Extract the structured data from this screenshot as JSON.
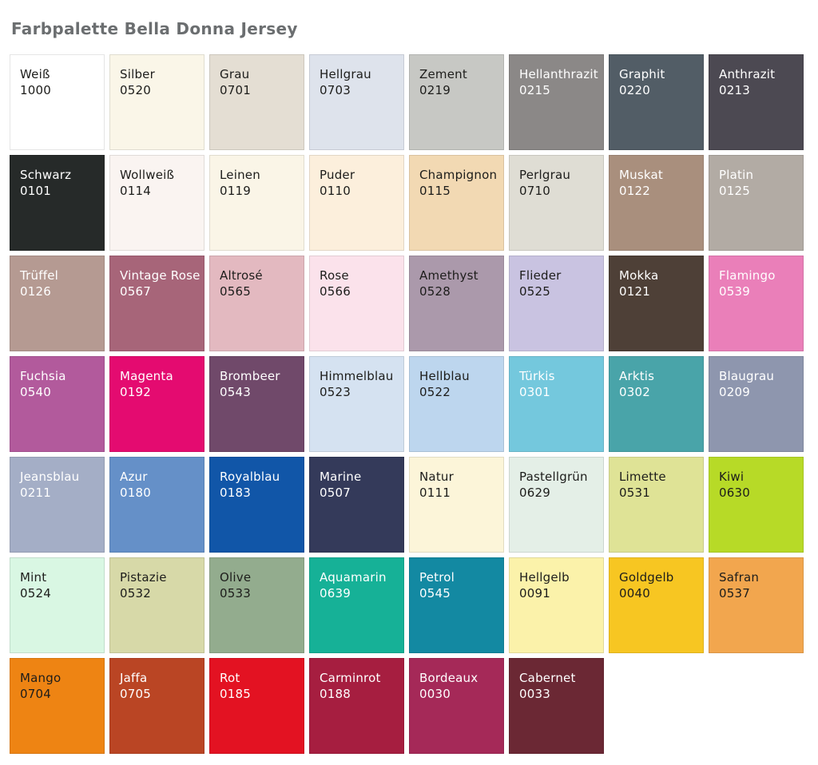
{
  "page": {
    "title": "Farbpalette Bella Donna Jersey"
  },
  "palette": {
    "columns": 8,
    "rows": 7,
    "swatch_count": 54,
    "dark_label_color": "#1d1d1b",
    "light_label_color": "#ffffff",
    "swatches": [
      {
        "name": "Weiß",
        "code": "1000",
        "bg": "#ffffff",
        "text": "#1d1d1b"
      },
      {
        "name": "Silber",
        "code": "0520",
        "bg": "#faf6e8",
        "text": "#1d1d1b"
      },
      {
        "name": "Grau",
        "code": "0701",
        "bg": "#e4ded3",
        "text": "#1d1d1b"
      },
      {
        "name": "Hellgrau",
        "code": "0703",
        "bg": "#dee3ec",
        "text": "#1d1d1b"
      },
      {
        "name": "Zement",
        "code": "0219",
        "bg": "#c7c8c4",
        "text": "#1d1d1b"
      },
      {
        "name": "Hellanthrazit",
        "code": "0215",
        "bg": "#8b8887",
        "text": "#ffffff"
      },
      {
        "name": "Graphit",
        "code": "0220",
        "bg": "#525d66",
        "text": "#ffffff"
      },
      {
        "name": "Anthrazit",
        "code": "0213",
        "bg": "#4c4952",
        "text": "#ffffff"
      },
      {
        "name": "Schwarz",
        "code": "0101",
        "bg": "#262a29",
        "text": "#ffffff"
      },
      {
        "name": "Wollweiß",
        "code": "0114",
        "bg": "#faf4f1",
        "text": "#1d1d1b"
      },
      {
        "name": "Leinen",
        "code": "0119",
        "bg": "#faf5e7",
        "text": "#1d1d1b"
      },
      {
        "name": "Puder",
        "code": "0110",
        "bg": "#fcefdc",
        "text": "#1d1d1b"
      },
      {
        "name": "Champignon",
        "code": "0115",
        "bg": "#f2d9b3",
        "text": "#1d1d1b"
      },
      {
        "name": "Perlgrau",
        "code": "0710",
        "bg": "#dfddd4",
        "text": "#1d1d1b"
      },
      {
        "name": "Muskat",
        "code": "0122",
        "bg": "#a98f7d",
        "text": "#ffffff"
      },
      {
        "name": "Platin",
        "code": "0125",
        "bg": "#b2aba4",
        "text": "#ffffff"
      },
      {
        "name": "Trüffel",
        "code": "0126",
        "bg": "#b59a92",
        "text": "#ffffff"
      },
      {
        "name": "Vintage Rose",
        "code": "0567",
        "bg": "#a76579",
        "text": "#ffffff"
      },
      {
        "name": "Altrosé",
        "code": "0565",
        "bg": "#e3b9c0",
        "text": "#1d1d1b"
      },
      {
        "name": "Rose",
        "code": "0566",
        "bg": "#fbe2eb",
        "text": "#1d1d1b"
      },
      {
        "name": "Amethyst",
        "code": "0528",
        "bg": "#ab99ab",
        "text": "#1d1d1b"
      },
      {
        "name": "Flieder",
        "code": "0525",
        "bg": "#c9c3e1",
        "text": "#1d1d1b"
      },
      {
        "name": "Mokka",
        "code": "0121",
        "bg": "#4e4037",
        "text": "#ffffff"
      },
      {
        "name": "Flamingo",
        "code": "0539",
        "bg": "#ea7fb9",
        "text": "#ffffff"
      },
      {
        "name": "Fuchsia",
        "code": "0540",
        "bg": "#b25a9c",
        "text": "#ffffff"
      },
      {
        "name": "Magenta",
        "code": "0192",
        "bg": "#e40b70",
        "text": "#ffffff"
      },
      {
        "name": "Brombeer",
        "code": "0543",
        "bg": "#70496a",
        "text": "#ffffff"
      },
      {
        "name": "Himmelblau",
        "code": "0523",
        "bg": "#d5e2f1",
        "text": "#1d1d1b"
      },
      {
        "name": "Hellblau",
        "code": "0522",
        "bg": "#bdd6ee",
        "text": "#1d1d1b"
      },
      {
        "name": "Türkis",
        "code": "0301",
        "bg": "#74c8dd",
        "text": "#ffffff"
      },
      {
        "name": "Arktis",
        "code": "0302",
        "bg": "#49a4a9",
        "text": "#ffffff"
      },
      {
        "name": "Blaugrau",
        "code": "0209",
        "bg": "#8e96ae",
        "text": "#ffffff"
      },
      {
        "name": "Jeansblau",
        "code": "0211",
        "bg": "#a4aec6",
        "text": "#ffffff"
      },
      {
        "name": "Azur",
        "code": "0180",
        "bg": "#6590c8",
        "text": "#ffffff"
      },
      {
        "name": "Royalblau",
        "code": "0183",
        "bg": "#1156a8",
        "text": "#ffffff"
      },
      {
        "name": "Marine",
        "code": "0507",
        "bg": "#343a5a",
        "text": "#ffffff"
      },
      {
        "name": "Natur",
        "code": "0111",
        "bg": "#fcf5d9",
        "text": "#1d1d1b"
      },
      {
        "name": "Pastellgrün",
        "code": "0629",
        "bg": "#e4efe7",
        "text": "#1d1d1b"
      },
      {
        "name": "Limette",
        "code": "0531",
        "bg": "#dfe396",
        "text": "#1d1d1b"
      },
      {
        "name": "Kiwi",
        "code": "0630",
        "bg": "#b7da27",
        "text": "#1d1d1b"
      },
      {
        "name": "Mint",
        "code": "0524",
        "bg": "#d9f7e3",
        "text": "#1d1d1b"
      },
      {
        "name": "Pistazie",
        "code": "0532",
        "bg": "#d7d9a8",
        "text": "#1d1d1b"
      },
      {
        "name": "Olive",
        "code": "0533",
        "bg": "#93ac8e",
        "text": "#1d1d1b"
      },
      {
        "name": "Aquamarin",
        "code": "0639",
        "bg": "#16b197",
        "text": "#ffffff"
      },
      {
        "name": "Petrol",
        "code": "0545",
        "bg": "#1389a2",
        "text": "#ffffff"
      },
      {
        "name": "Hellgelb",
        "code": "0091",
        "bg": "#fbf2aa",
        "text": "#1d1d1b"
      },
      {
        "name": "Goldgelb",
        "code": "0040",
        "bg": "#f7c622",
        "text": "#1d1d1b"
      },
      {
        "name": "Safran",
        "code": "0537",
        "bg": "#f2a64e",
        "text": "#1d1d1b"
      },
      {
        "name": "Mango",
        "code": "0704",
        "bg": "#ee8413",
        "text": "#1d1d1b"
      },
      {
        "name": "Jaffa",
        "code": "0705",
        "bg": "#ba4524",
        "text": "#ffffff"
      },
      {
        "name": "Rot",
        "code": "0185",
        "bg": "#e31222",
        "text": "#ffffff"
      },
      {
        "name": "Carminrot",
        "code": "0188",
        "bg": "#a61e40",
        "text": "#ffffff"
      },
      {
        "name": "Bordeaux",
        "code": "0030",
        "bg": "#a52958",
        "text": "#ffffff"
      },
      {
        "name": "Cabernet",
        "code": "0033",
        "bg": "#6b2834",
        "text": "#ffffff"
      }
    ]
  }
}
